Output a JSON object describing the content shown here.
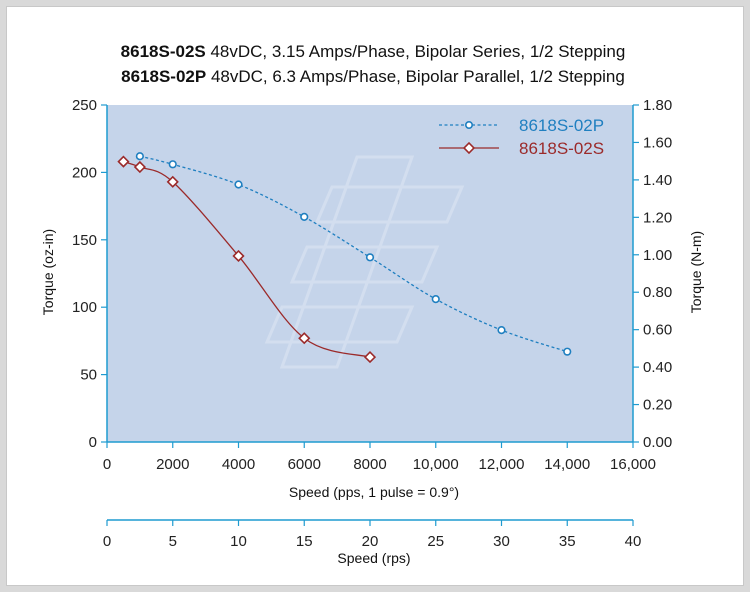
{
  "chart_data": {
    "type": "line",
    "title_lines": [
      {
        "model": "8618S-02S",
        "spec": " 48vDC, 3.15 Amps/Phase, Bipolar Series, 1/2 Stepping"
      },
      {
        "model": "8618S-02P",
        "spec": " 48vDC, 6.3 Amps/Phase, Bipolar Parallel, 1/2 Stepping"
      }
    ],
    "xlabel": "Speed (pps, 1 pulse = 0.9°)",
    "x2label": "Speed (rps)",
    "ylabel": "Torque (oz-in)",
    "y2label": "Torque (N-m)",
    "xlim": [
      0,
      16000
    ],
    "ylim": [
      0,
      250
    ],
    "y2lim": [
      0,
      1.8
    ],
    "x2lim": [
      0,
      40
    ],
    "x_ticks": [
      "0",
      "2000",
      "4000",
      "6000",
      "8000",
      "10,000",
      "12,000",
      "14,000",
      "16,000"
    ],
    "y_ticks": [
      "0",
      "50",
      "100",
      "150",
      "200",
      "250"
    ],
    "y2_ticks": [
      "0.00",
      "0.20",
      "0.40",
      "0.60",
      "0.80",
      "1.00",
      "1.20",
      "1.40",
      "1.60",
      "1.80"
    ],
    "x2_ticks": [
      "0",
      "5",
      "10",
      "15",
      "20",
      "25",
      "30",
      "35",
      "40"
    ],
    "legend_position": "top-right",
    "grid": false,
    "background_color": "#c5d4ea",
    "series": [
      {
        "name": "8618S-02P",
        "color": "#1f7fc0",
        "style": "dashed",
        "marker": "circle",
        "x": [
          1000,
          2000,
          4000,
          6000,
          8000,
          10000,
          12000,
          14000
        ],
        "y": [
          212,
          206,
          191,
          167,
          137,
          106,
          83,
          67
        ]
      },
      {
        "name": "8618S-02S",
        "color": "#9b2a2a",
        "style": "solid",
        "marker": "diamond",
        "x": [
          500,
          1000,
          2000,
          4000,
          6000,
          8000
        ],
        "y": [
          208,
          204,
          193,
          138,
          77,
          63
        ]
      }
    ]
  }
}
